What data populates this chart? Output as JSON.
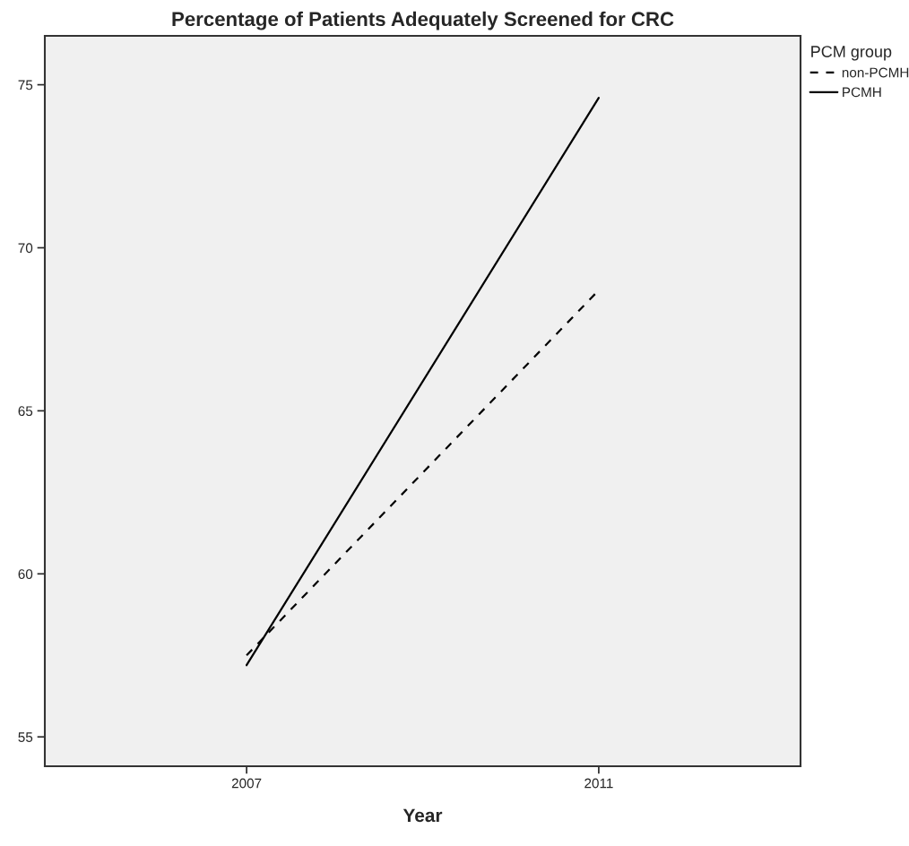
{
  "chart_data": {
    "type": "line",
    "title": "Percentage of Patients Adequately Screened for CRC",
    "xlabel": "Year",
    "legend_title": "PCM group",
    "categories": [
      "2007",
      "2011"
    ],
    "series": [
      {
        "name": "non-PCMH",
        "color": "#000000",
        "values": [
          57.5,
          68.7
        ],
        "line_style": "dashed"
      },
      {
        "name": "PCMH",
        "color": "#000000",
        "values": [
          57.2,
          74.6
        ],
        "line_style": "solid"
      }
    ],
    "ylim": [
      54.1,
      76.5
    ],
    "yticks": [
      55,
      60,
      65,
      70,
      75
    ],
    "grid": false,
    "legend": "top right",
    "marker": "none"
  }
}
